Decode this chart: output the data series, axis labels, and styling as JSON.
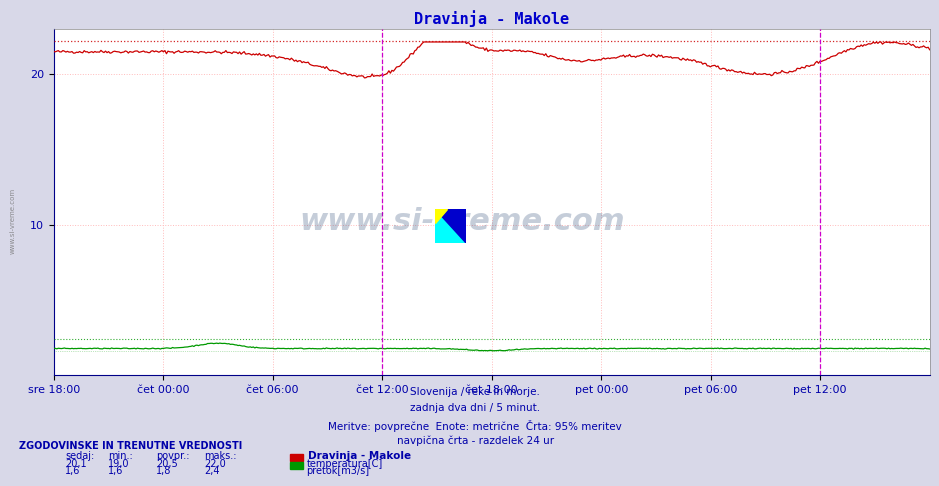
{
  "title": "Dravinja - Makole",
  "title_color": "#0000cc",
  "bg_color": "#d8d8e8",
  "plot_bg_color": "#ffffff",
  "grid_color": "#ffbbbb",
  "xlabel_ticks": [
    "sre 18:00",
    "čet 00:00",
    "čet 06:00",
    "čet 12:00",
    "čet 18:00",
    "pet 00:00",
    "pet 06:00",
    "pet 12:00"
  ],
  "n_points": 576,
  "temp_max_line": 22.2,
  "flow_max_line": 2.4,
  "ylim": [
    0,
    23.0
  ],
  "yticks": [
    10,
    20
  ],
  "temp_color": "#cc0000",
  "flow_color": "#009900",
  "vline_color": "#cc00cc",
  "text_color": "#0000aa",
  "watermark_color": "#1a3a6a",
  "footer_line1": "Slovenija / reke in morje.",
  "footer_line2": "zadnja dva dni / 5 minut.",
  "footer_line3": "Meritve: povprečne  Enote: metrične  Črta: 95% meritev",
  "footer_line4": "navpična črta - razdelek 24 ur",
  "legend_title": "Dravinja - Makole",
  "legend_temp": "temperatura[C]",
  "legend_flow": "pretok[m3/s]",
  "table_header": "ZGODOVINSKE IN TRENUTNE VREDNOSTI",
  "col0": "sedaj:",
  "col1": "min.:",
  "col2": "povpr.:",
  "col3": "maks.:",
  "temp_vals": [
    "20,1",
    "19,0",
    "20,5",
    "22,0"
  ],
  "flow_vals": [
    "1,6",
    "1,6",
    "1,8",
    "2,4"
  ],
  "sidebar": "www.si-vreme.com"
}
